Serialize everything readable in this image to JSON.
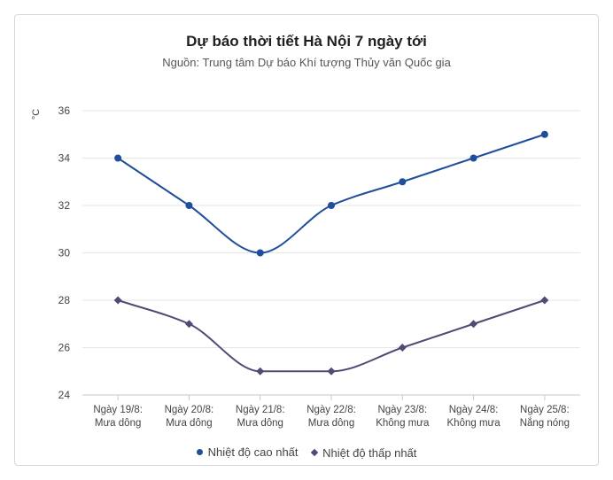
{
  "chart_data": {
    "type": "line",
    "title": "Dự báo thời tiết Hà Nội 7 ngày tới",
    "subtitle": "Nguồn: Trung tâm Dự báo Khí tượng Thủy văn Quốc gia",
    "ylabel": "°C",
    "ylim": [
      24,
      36
    ],
    "yticks": [
      24,
      26,
      28,
      30,
      32,
      34,
      36
    ],
    "grid": true,
    "legend_position": "bottom",
    "categories": [
      [
        "Ngày 19/8:",
        "Mưa dông"
      ],
      [
        "Ngày 20/8:",
        "Mưa dông"
      ],
      [
        "Ngày 21/8:",
        "Mưa dông"
      ],
      [
        "Ngày 22/8:",
        "Mưa dông"
      ],
      [
        "Ngày 23/8:",
        "Không mưa"
      ],
      [
        "Ngày 24/8:",
        "Không mưa"
      ],
      [
        "Ngày 25/8:",
        "Nắng nóng"
      ]
    ],
    "series": [
      {
        "name": "Nhiệt độ cao nhất",
        "values": [
          34,
          32,
          30,
          32,
          33,
          34,
          35
        ],
        "color": "#1f4e9b",
        "marker": "circle"
      },
      {
        "name": "Nhiệt độ thấp nhất",
        "values": [
          28,
          27,
          25,
          25,
          26,
          27,
          28
        ],
        "color": "#4f4b75",
        "marker": "diamond"
      }
    ]
  }
}
